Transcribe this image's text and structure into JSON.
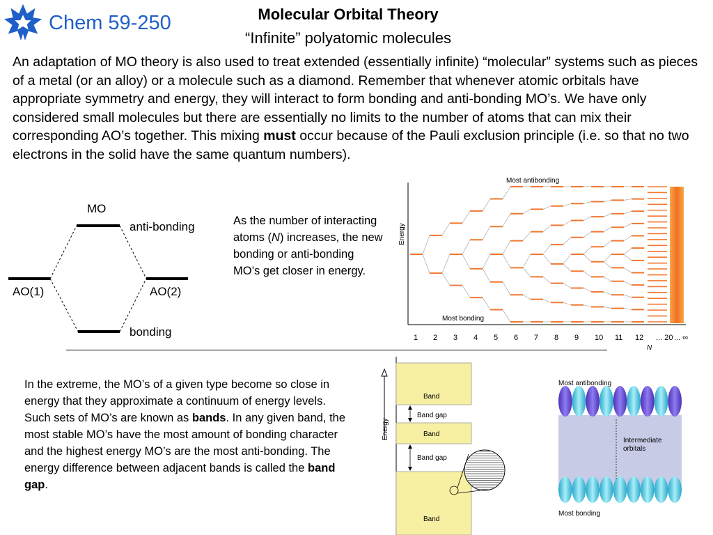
{
  "header": {
    "course": "Chem 59-250",
    "title": "Molecular Orbital Theory",
    "subtitle": "“Infinite” polyatomic molecules"
  },
  "intro": {
    "pre": "An adaptation of MO theory is also used to treat extended (essentially infinite) “molecular” systems such as pieces of a metal (or an alloy) or a molecule such as a diamond.  Remember that whenever atomic orbitals have appropriate symmetry and energy, they will interact to form bonding and anti-bonding MO’s.  We have only considered small molecules but there are essentially no limits to the number of atoms that can mix their corresponding AO’s together.  This mixing ",
    "bold": "must",
    "post": " occur because of the Pauli exclusion principle (i.e. so that no two electrons in the solid have the same quantum numbers)."
  },
  "mo_diagram": {
    "mo": "MO",
    "anti": "anti-bonding",
    "bonding": "bonding",
    "ao1": "AO(1)",
    "ao2": "AO(2)"
  },
  "aside": {
    "pre": "As the number of interacting atoms (",
    "italic": "N",
    "post": ") increases, the new bonding or anti-bonding MO’s get closer in energy."
  },
  "n_figure": {
    "most_antibonding": "Most antibonding",
    "most_bonding": "Most bonding",
    "energy": "Energy",
    "ticks": [
      "1",
      "2",
      "3",
      "4",
      "5",
      "6",
      "7",
      "8",
      "9",
      "10",
      "11",
      "12",
      "... 20",
      "... ∞"
    ],
    "axis_label": "N",
    "line_color": "#f07830"
  },
  "band_text": {
    "pre1": "In the extreme, the MO’s of a given type become so close in energy that they approximate a continuum of energy levels.  Such sets of MO’s are known as ",
    "bold1": "bands",
    "mid": ".  In any given band, the most stable MO’s have the most amount of bonding character and the highest energy MO’s are the most anti-bonding.  The energy difference between adjacent bands is called the ",
    "bold2": "band gap",
    "end": "."
  },
  "band_figure": {
    "energy": "Energy",
    "band": "Band",
    "band_gap": "Band gap",
    "band_color": "#f7f0a3"
  },
  "orbital_figure": {
    "most_antibonding": "Most antibonding",
    "intermediate_1": "Intermediate",
    "intermediate_2": "orbitals",
    "most_bonding": "Most bonding"
  }
}
